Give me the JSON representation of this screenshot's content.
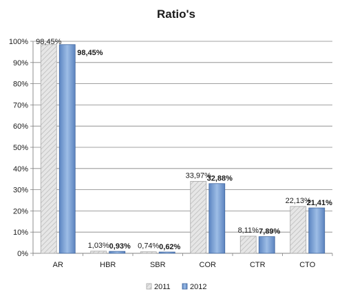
{
  "chart_data": {
    "type": "bar",
    "title": "Ratio's",
    "categories": [
      "AR",
      "HBR",
      "SBR",
      "COR",
      "CTR",
      "CTO"
    ],
    "series": [
      {
        "name": "2011",
        "values": [
          98.45,
          1.03,
          0.74,
          33.97,
          8.11,
          22.13
        ],
        "labels": [
          "98,45%",
          "1,03%",
          "0,74%",
          "33,97%",
          "8,11%",
          "22,13%"
        ],
        "color": "#d9d9d9",
        "pattern": "hatched-grey"
      },
      {
        "name": "2012",
        "values": [
          98.45,
          0.93,
          0.62,
          32.88,
          7.89,
          21.41
        ],
        "labels": [
          "98,45%",
          "0,93%",
          "0,62%",
          "32,88%",
          "7,89%",
          "21,41%"
        ],
        "color": "#7fa6d9",
        "pattern": "blue-gradient"
      }
    ],
    "y_ticks": [
      "0%",
      "10%",
      "20%",
      "30%",
      "40%",
      "50%",
      "60%",
      "70%",
      "80%",
      "90%",
      "100%"
    ],
    "ylim": [
      0,
      100
    ],
    "grid": true,
    "legend_position": "bottom"
  }
}
